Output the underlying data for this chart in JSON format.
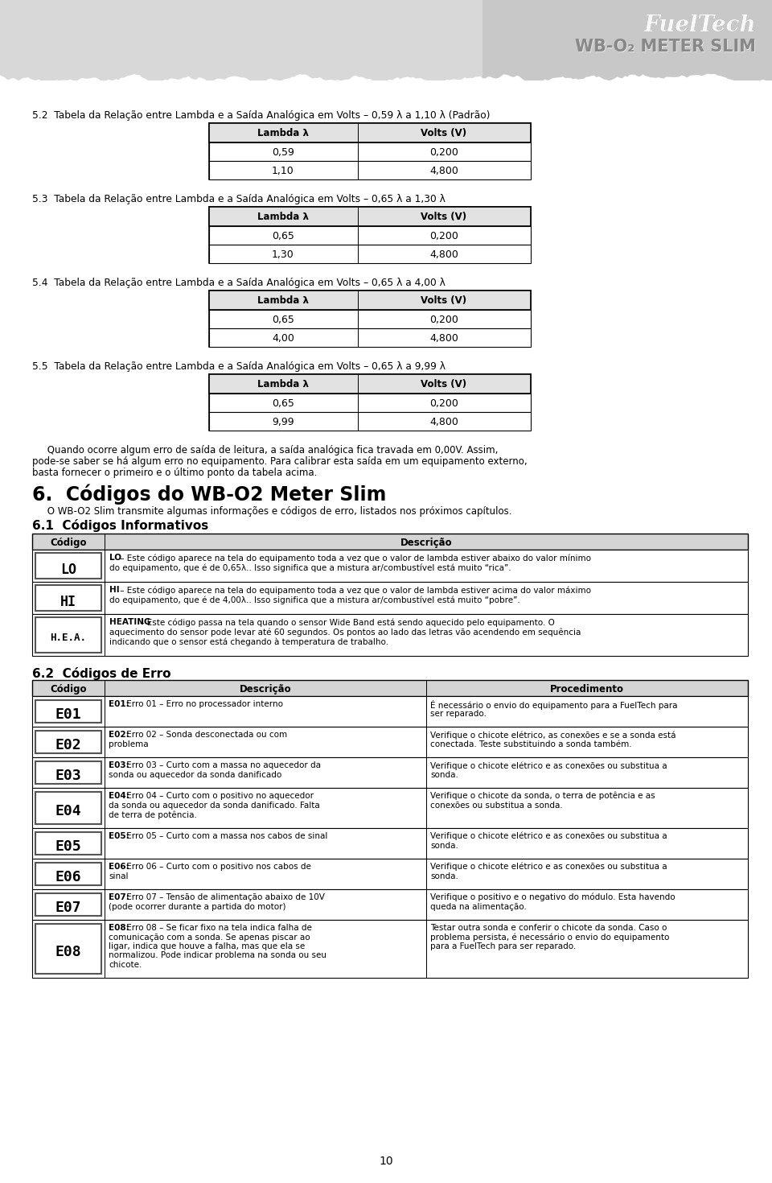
{
  "sections": [
    {
      "number": "5.2",
      "title": "Tabela da Relação entre Lambda e a Saída Analógica em Volts – 0,59 λ a 1,10 λ (Padrão)",
      "col1": "Lambda λ",
      "col2": "Volts (V)",
      "rows": [
        [
          "0,59",
          "0,200"
        ],
        [
          "1,10",
          "4,800"
        ]
      ]
    },
    {
      "number": "5.3",
      "title": "Tabela da Relação entre Lambda e a Saída Analógica em Volts – 0,65 λ a 1,30 λ",
      "col1": "Lambda λ",
      "col2": "Volts (V)",
      "rows": [
        [
          "0,65",
          "0,200"
        ],
        [
          "1,30",
          "4,800"
        ]
      ]
    },
    {
      "number": "5.4",
      "title": "Tabela da Relação entre Lambda e a Saída Analógica em Volts – 0,65 λ a 4,00 λ",
      "col1": "Lambda λ",
      "col2": "Volts (V)",
      "rows": [
        [
          "0,65",
          "0,200"
        ],
        [
          "4,00",
          "4,800"
        ]
      ]
    },
    {
      "number": "5.5",
      "title": "Tabela da Relação entre Lambda e a Saída Analógica em Volts – 0,65 λ a 9,99 λ",
      "col1": "Lambda λ",
      "col2": "Volts (V)",
      "rows": [
        [
          "0,65",
          "0,200"
        ],
        [
          "9,99",
          "4,800"
        ]
      ]
    }
  ],
  "para_lines": [
    "     Quando ocorre algum erro de saída de leitura, a saída analógica fica travada em 0,00V. Assim,",
    "pode-se saber se há algum erro no equipamento. Para calibrar esta saída em um equipamento externo,",
    "basta fornecer o primeiro e o último ponto da tabela acima."
  ],
  "section6_title": "6.  Códigos do WB-O2 Meter Slim",
  "section6_intro": "     O WB-O2 Slim transmite algumas informações e códigos de erro, listados nos próximos capítulos.",
  "section61_title": "6.1  Códigos Informativos",
  "info_header_col1": "Código",
  "info_header_col2": "Descrição",
  "info_codes": [
    {
      "code": "LO",
      "desc_bold": "LO",
      "desc_rest": " – Este código aparece na tela do equipamento toda a vez que o valor de lambda estiver abaixo do valor mínimo",
      "desc_line2": "do equipamento, que é de 0,65λ.. Isso significa que a mistura ar/combustível está muito “rica”.",
      "rh": 40
    },
    {
      "code": "HI",
      "desc_bold": "HI",
      "desc_rest": " – Este código aparece na tela do equipamento toda a vez que o valor de lambda estiver acima do valor máximo",
      "desc_line2": "do equipamento, que é de 4,00λ.. Isso significa que a mistura ar/combustível está muito “pobre”.",
      "rh": 40
    },
    {
      "code": "H.E.A.",
      "desc_bold": "HEATING",
      "desc_rest": " – Este código passa na tela quando o sensor Wide Band está sendo aquecido pelo equipamento. O",
      "desc_line2": "aquecimento do sensor pode levar até 60 segundos. Os pontos ao lado das letras vão acendendo em sequência",
      "desc_line3": "indicando que o sensor está chegando à temperatura de trabalho.",
      "rh": 52
    }
  ],
  "section62_title": "6.2  Códigos de Erro",
  "err_header_col1": "Código",
  "err_header_col2": "Descrição",
  "err_header_col3": "Procedimento",
  "error_codes": [
    {
      "code": "E01",
      "desc_bold": "E01:",
      "desc_lines": [
        " Erro 01 – Erro no processador interno"
      ],
      "proc_lines": [
        "É necessário o envio do equipamento para a FuelTech para",
        "ser reparado."
      ],
      "rh": 38
    },
    {
      "code": "E02",
      "desc_bold": "E02:",
      "desc_lines": [
        " Erro 02 – Sonda desconectada ou com",
        "problema"
      ],
      "proc_lines": [
        "Verifique o chicote elétrico, as conexões e se a sonda está",
        "conectada. Teste substituindo a sonda também."
      ],
      "rh": 38
    },
    {
      "code": "E03",
      "desc_bold": "E03:",
      "desc_lines": [
        " Erro 03 – Curto com a massa no aquecedor da",
        "sonda ou aquecedor da sonda danificado"
      ],
      "proc_lines": [
        "Verifique o chicote elétrico e as conexões ou substitua a",
        "sonda."
      ],
      "rh": 38
    },
    {
      "code": "E04",
      "desc_bold": "E04:",
      "desc_lines": [
        " Erro 04 – Curto com o positivo no aquecedor",
        "da sonda ou aquecedor da sonda danificado. Falta",
        "de terra de potência."
      ],
      "proc_lines": [
        "Verifique o chicote da sonda, o terra de potência e as",
        "conexões ou substitua a sonda."
      ],
      "rh": 50
    },
    {
      "code": "E05",
      "desc_bold": "E05:",
      "desc_lines": [
        " Erro 05 – Curto com a massa nos cabos de sinal"
      ],
      "proc_lines": [
        "Verifique o chicote elétrico e as conexões ou substitua a",
        "sonda."
      ],
      "rh": 38
    },
    {
      "code": "E06",
      "desc_bold": "E06:",
      "desc_lines": [
        " Erro 06 – Curto com o positivo nos cabos de",
        "sinal"
      ],
      "proc_lines": [
        "Verifique o chicote elétrico e as conexões ou substitua a",
        "sonda."
      ],
      "rh": 38
    },
    {
      "code": "E07",
      "desc_bold": "E07:",
      "desc_lines": [
        " Erro 07 – Tensão de alimentação abaixo de 10V",
        "(pode ocorrer durante a partida do motor)"
      ],
      "proc_lines": [
        "Verifique o positivo e o negativo do módulo. Esta havendo",
        "queda na alimentação."
      ],
      "rh": 38
    },
    {
      "code": "E08",
      "desc_bold": "E08:",
      "desc_lines": [
        " Erro 08 – Se ficar fixo na tela indica falha de",
        "comunicação com a sonda. Se apenas piscar ao",
        "ligar, indica que houve a falha, mas que ela se",
        "normalizou. Pode indicar problema na sonda ou seu",
        "chicote."
      ],
      "proc_lines": [
        "Testar outra sonda e conferir o chicote da sonda. Caso o",
        "problema persista, é necessário o envio do equipamento",
        "para a FuelTech para ser reparado."
      ],
      "rh": 72
    }
  ],
  "page_number": "10",
  "header_bg": "#c8c8c8",
  "page_bg": "#ffffff",
  "table_header_bg": "#d4d4d4",
  "border_color": "#000000",
  "text_color": "#000000",
  "code_box_border": "#555555",
  "code_box_bg": "#ffffff"
}
